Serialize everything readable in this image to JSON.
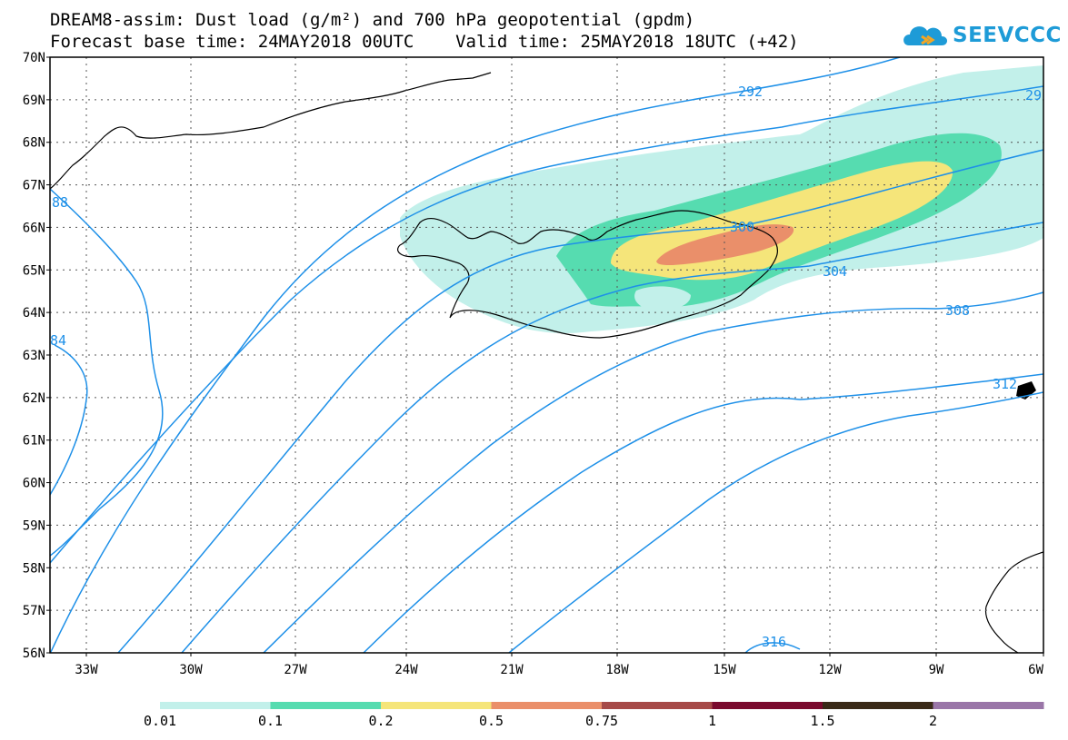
{
  "title_line1": "DREAM8-assim: Dust load (g/m²) and 700 hPa geopotential (gpdm)",
  "title_line2": "Forecast base time: 24MAY2018 00UTC    Valid time: 25MAY2018 18UTC (+42)",
  "logo_text": "SEEVCCC",
  "lat_labels": [
    "70N",
    "69N",
    "68N",
    "67N",
    "66N",
    "65N",
    "64N",
    "63N",
    "62N",
    "61N",
    "60N",
    "59N",
    "58N",
    "57N",
    "56N"
  ],
  "lon_labels": [
    "33W",
    "30W",
    "27W",
    "24W",
    "21W",
    "18W",
    "15W",
    "12W",
    "9W",
    "6W"
  ],
  "contour_labels": [
    "292",
    "29",
    "300",
    "304",
    "308",
    "312",
    "316",
    "88",
    "84"
  ],
  "colorbar": {
    "labels": [
      "0.01",
      "0.1",
      "0.2",
      "0.5",
      "0.75",
      "1",
      "1.5",
      "2"
    ],
    "colors": [
      "#c2f0ea",
      "#56dcb0",
      "#f5e57a",
      "#ea8f6a",
      "#a64a48",
      "#7a0a2e",
      "#3a2a18",
      "#9a76a8"
    ]
  },
  "colors": {
    "contour": "#1e90e8",
    "dust_1": "#c2f0ea",
    "dust_2": "#56dcb0",
    "dust_3": "#f5e57a",
    "dust_4": "#ea8f6a"
  }
}
